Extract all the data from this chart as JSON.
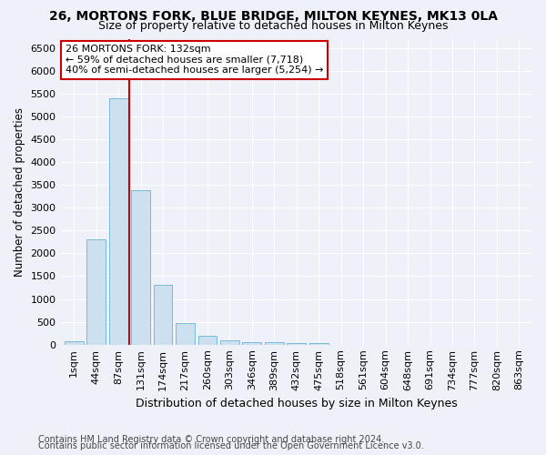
{
  "title1": "26, MORTONS FORK, BLUE BRIDGE, MILTON KEYNES, MK13 0LA",
  "title2": "Size of property relative to detached houses in Milton Keynes",
  "xlabel": "Distribution of detached houses by size in Milton Keynes",
  "ylabel": "Number of detached properties",
  "footnote1": "Contains HM Land Registry data © Crown copyright and database right 2024.",
  "footnote2": "Contains public sector information licensed under the Open Government Licence v3.0.",
  "bar_labels": [
    "1sqm",
    "44sqm",
    "87sqm",
    "131sqm",
    "174sqm",
    "217sqm",
    "260sqm",
    "303sqm",
    "346sqm",
    "389sqm",
    "432sqm",
    "475sqm",
    "518sqm",
    "561sqm",
    "604sqm",
    "648sqm",
    "691sqm",
    "734sqm",
    "777sqm",
    "820sqm",
    "863sqm"
  ],
  "bar_values": [
    75,
    2300,
    5400,
    3380,
    1310,
    480,
    195,
    90,
    60,
    50,
    40,
    35,
    0,
    0,
    0,
    0,
    0,
    0,
    0,
    0,
    0
  ],
  "bar_color": "#cce0f0",
  "bar_edgecolor": "#7ab8d9",
  "vline_color": "#cc0000",
  "annotation_title": "26 MORTONS FORK: 132sqm",
  "annotation_line2": "← 59% of detached houses are smaller (7,718)",
  "annotation_line3": "40% of semi-detached houses are larger (5,254) →",
  "ylim_max": 6700,
  "background_color": "#eef2f8",
  "grid_color": "#ffffff",
  "title1_fontsize": 10,
  "title2_fontsize": 9,
  "xlabel_fontsize": 9,
  "ylabel_fontsize": 8.5,
  "tick_fontsize": 8,
  "annot_fontsize": 8,
  "footnote_fontsize": 7
}
